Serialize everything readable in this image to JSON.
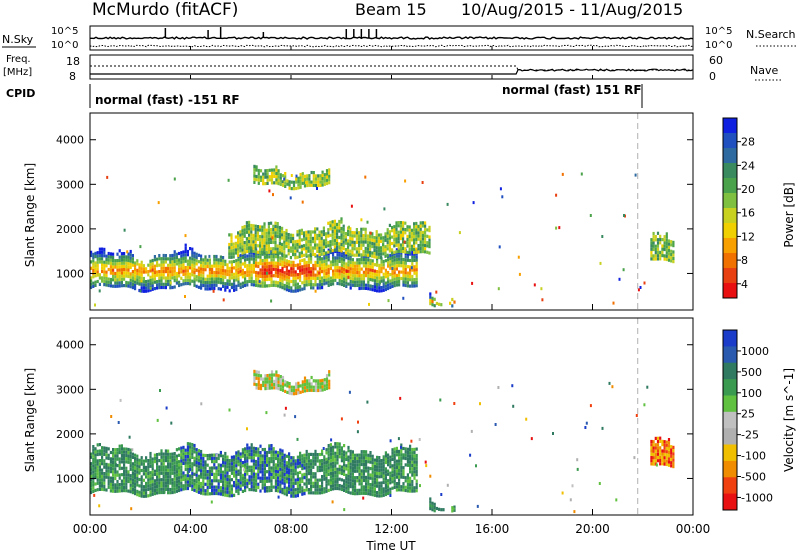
{
  "header": {
    "station": "McMurdo (fitACF)",
    "beam": "Beam 15",
    "date_range": "10/Aug/2015 - 11/Aug/2015"
  },
  "noise_panel": {
    "left_label": "N.Sky",
    "right_label": "N.Search",
    "tick_top": "10^5",
    "tick_bottom": "10^0"
  },
  "freq_panel": {
    "left_label_1": "Freq.",
    "left_label_2": "[MHz]",
    "right_label": "Nave",
    "left_ticks": [
      "18",
      "8"
    ],
    "right_ticks": [
      "60",
      "0"
    ]
  },
  "cpid_panel": {
    "label": "CPID",
    "mode_1": "normal (fast) -151 RF",
    "mode_2": "normal (fast) 151 RF"
  },
  "chart_data": [
    {
      "type": "heatmap",
      "title": "",
      "xlabel": "",
      "ylabel": "Slant Range [km]",
      "xlim_hours": [
        0,
        24
      ],
      "ylim_km": [
        180,
        4600
      ],
      "yticks": [
        "4000",
        "3000",
        "2000",
        "1000"
      ],
      "colorbar": {
        "label": "Power [dB]",
        "ticks": [
          "28",
          "24",
          "20",
          "16",
          "12",
          "8",
          "4"
        ],
        "colors": [
          "#1020e0",
          "#2050c0",
          "#2e6aa0",
          "#3a8a60",
          "#4aa24a",
          "#80c040",
          "#c8d020",
          "#f0d000",
          "#f8a000",
          "#f07000",
          "#e84010",
          "#e81010"
        ]
      },
      "dashed_marker_hour": 21.8,
      "echo_regions": [
        {
          "t_start": 0.0,
          "t_end": 13.0,
          "r_low": 650,
          "r_high": 1400,
          "level": "high",
          "peak_hours": [
            6.5,
            9.0
          ]
        },
        {
          "t_start": 5.5,
          "t_end": 13.5,
          "r_low": 1400,
          "r_high": 2000,
          "level": "mid"
        },
        {
          "t_start": 6.5,
          "t_end": 9.5,
          "r_low": 2950,
          "r_high": 3250,
          "level": "mid"
        },
        {
          "t_start": 13.5,
          "t_end": 14.5,
          "r_low": 200,
          "r_high": 450,
          "level": "high"
        },
        {
          "t_start": 22.3,
          "t_end": 23.2,
          "r_low": 1300,
          "r_high": 1900,
          "level": "mid"
        }
      ]
    },
    {
      "type": "heatmap",
      "title": "",
      "xlabel": "Time UT",
      "ylabel": "Slant Range [km]",
      "xlim_hours": [
        0,
        24
      ],
      "ylim_km": [
        180,
        4600
      ],
      "xticks": [
        "00:00",
        "04:00",
        "08:00",
        "12:00",
        "16:00",
        "20:00",
        "00:00"
      ],
      "yticks": [
        "4000",
        "3000",
        "2000",
        "1000"
      ],
      "colorbar": {
        "label": "Velocity [m s^-1]",
        "ticks": [
          "1000",
          "500",
          "100",
          "25",
          "-25",
          "-100",
          "-500",
          "-1000"
        ],
        "colors": [
          "#1a3cc8",
          "#2a5ab0",
          "#2f7a60",
          "#3a9a50",
          "#60c040",
          "#c0c0c0",
          "#b0b0b0",
          "#f0c000",
          "#f08c00",
          "#f04010",
          "#e81010"
        ]
      },
      "dashed_marker_hour": 21.8,
      "echo_regions": [
        {
          "t_start": 0.0,
          "t_end": 13.0,
          "r_low": 650,
          "r_high": 1600,
          "level": "low-velocity",
          "note": "mostly green, blue patches near 04:00-08:00"
        },
        {
          "t_start": 6.5,
          "t_end": 9.5,
          "r_low": 2950,
          "r_high": 3250,
          "level": "mixed"
        },
        {
          "t_start": 13.5,
          "t_end": 14.5,
          "r_low": 200,
          "r_high": 450,
          "level": "low-velocity"
        },
        {
          "t_start": 22.3,
          "t_end": 23.2,
          "r_low": 1300,
          "r_high": 1900,
          "level": "negative"
        }
      ]
    }
  ]
}
